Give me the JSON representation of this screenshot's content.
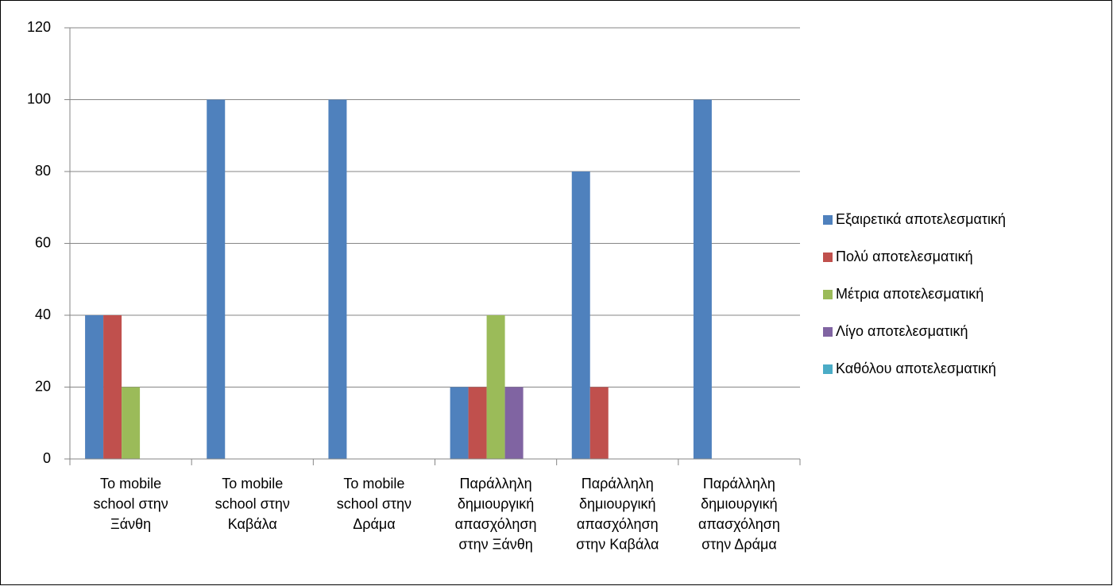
{
  "chart_data": {
    "type": "bar",
    "categories": [
      "Το mobile school στην Ξάνθη",
      "Το mobile school στην Καβάλα",
      "Το mobile school στην Δράμα",
      "Παράλληλη δημιουργική απασχόληση στην Ξάνθη",
      "Παράλληλη δημιουργική απασχόληση στην Καβάλα",
      "Παράλληλη δημιουργική απασχόληση στην Δράμα"
    ],
    "series": [
      {
        "name": "Εξαιρετικά αποτελεσματική",
        "color": "#4f81bd",
        "values": [
          40,
          100,
          100,
          20,
          80,
          100
        ]
      },
      {
        "name": "Πολύ αποτελεσματική",
        "color": "#c0504d",
        "values": [
          40,
          0,
          0,
          20,
          20,
          0
        ]
      },
      {
        "name": "Μέτρια αποτελεσματική",
        "color": "#9bbb59",
        "values": [
          20,
          0,
          0,
          40,
          0,
          0
        ]
      },
      {
        "name": "Λίγο αποτελεσματική",
        "color": "#8064a2",
        "values": [
          0,
          0,
          0,
          20,
          0,
          0
        ]
      },
      {
        "name": "Καθόλου αποτελεσματική",
        "color": "#4bacc6",
        "values": [
          0,
          0,
          0,
          0,
          0,
          0
        ]
      }
    ],
    "ylim": [
      0,
      120
    ],
    "yticks": [
      0,
      20,
      40,
      60,
      80,
      100,
      120
    ],
    "grid": true,
    "legend": "right"
  }
}
